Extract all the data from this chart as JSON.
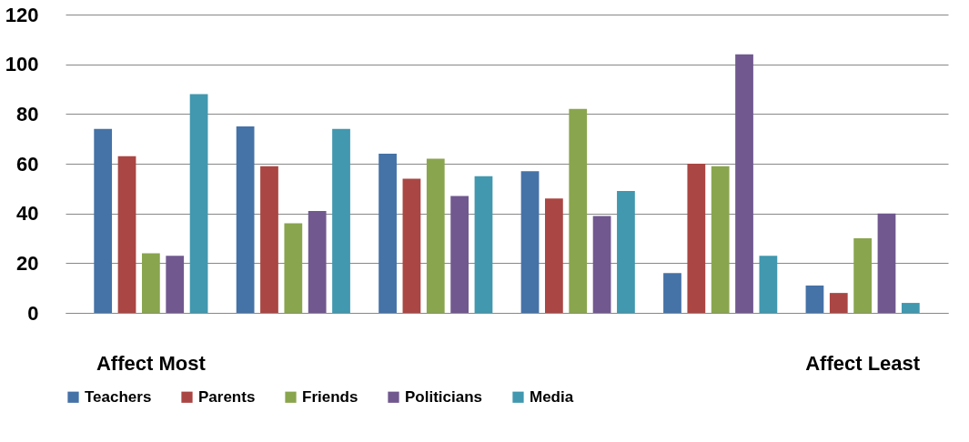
{
  "chart_data": {
    "type": "bar",
    "categories": [
      "Affect Most",
      null,
      null,
      null,
      null,
      "Affect Least"
    ],
    "series": [
      {
        "name": "Teachers",
        "color": "#4572a7",
        "values": [
          74,
          75,
          64,
          57,
          16,
          11
        ]
      },
      {
        "name": "Parents",
        "color": "#aa4643",
        "values": [
          63,
          59,
          54,
          46,
          60,
          8
        ]
      },
      {
        "name": "Friends",
        "color": "#89a54e",
        "values": [
          24,
          36,
          62,
          82,
          59,
          30
        ]
      },
      {
        "name": "Politicians",
        "color": "#71588f",
        "values": [
          23,
          41,
          47,
          39,
          104,
          40
        ]
      },
      {
        "name": "Media",
        "color": "#4198af",
        "values": [
          88,
          74,
          55,
          49,
          23,
          4
        ]
      }
    ],
    "ylim": [
      0,
      120
    ],
    "yticks": [
      0,
      20,
      40,
      60,
      80,
      100,
      120
    ],
    "grid": "y",
    "legend": "bottom"
  }
}
